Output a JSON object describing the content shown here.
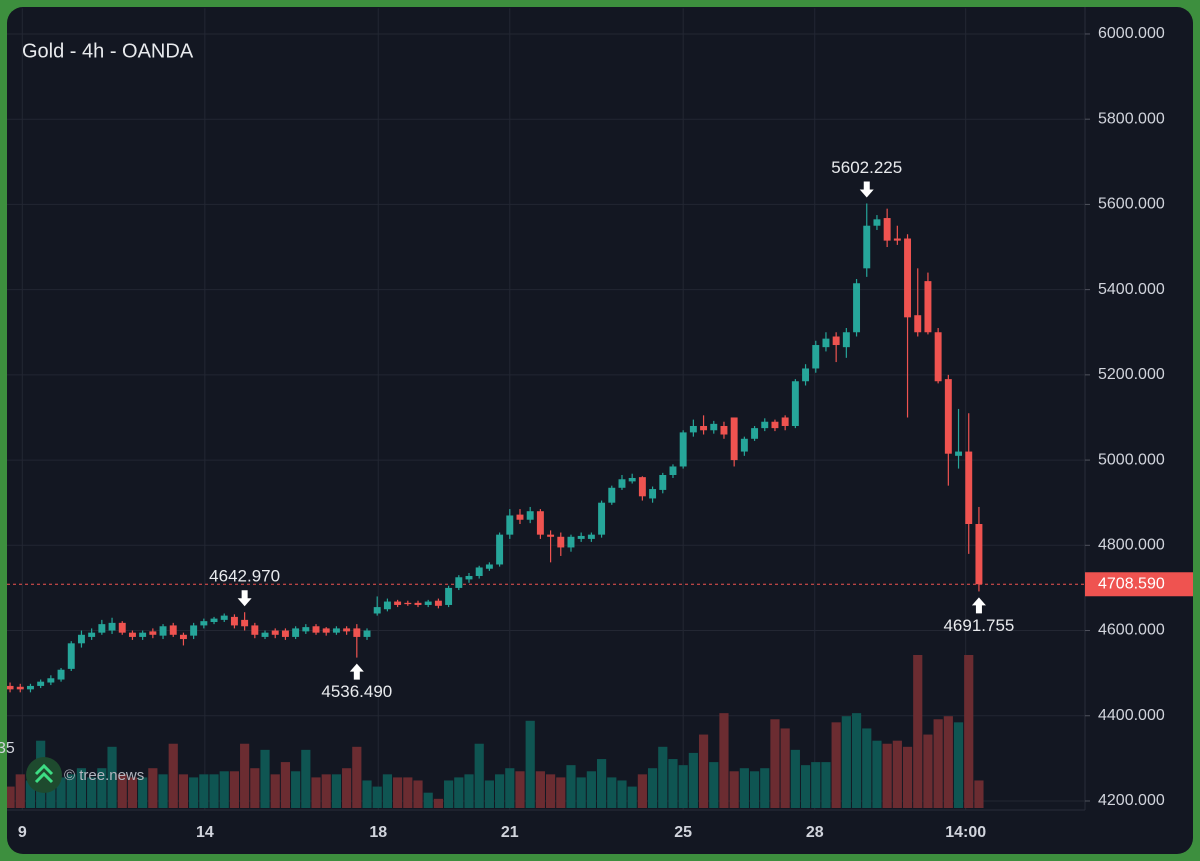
{
  "chart_data": {
    "type": "candlestick",
    "title": "Gold - 4h - OANDA",
    "watermark": "© tree.news",
    "volume_label": "35",
    "up_color": "#26a69a",
    "down_color": "#ef5350",
    "volume_up_color": "#0f5552",
    "volume_down_color": "#6b2c31",
    "grid": true,
    "ylim": [
      4180,
      6060
    ],
    "yticks": [
      {
        "value": 4200,
        "label": "4200.000"
      },
      {
        "value": 4400,
        "label": "4400.000"
      },
      {
        "value": 4600,
        "label": "4600.000"
      },
      {
        "value": 4800,
        "label": "4800.000"
      },
      {
        "value": 5000,
        "label": "5000.000"
      },
      {
        "value": 5200,
        "label": "5200.000"
      },
      {
        "value": 5400,
        "label": "5400.000"
      },
      {
        "value": 5600,
        "label": "5600.000"
      },
      {
        "value": 5800,
        "label": "5800.000"
      },
      {
        "value": 6000,
        "label": "6000.000"
      }
    ],
    "xlim": [
      -0.3,
      105.4
    ],
    "xticks": [
      {
        "value": 1.2,
        "label": "9"
      },
      {
        "value": 19.1,
        "label": "14"
      },
      {
        "value": 36.1,
        "label": "18"
      },
      {
        "value": 49.0,
        "label": "21"
      },
      {
        "value": 66.0,
        "label": "25"
      },
      {
        "value": 78.9,
        "label": "28"
      },
      {
        "value": 93.7,
        "label": "14:00"
      }
    ],
    "last_price": {
      "value": 4708.59,
      "label": "4708.590"
    },
    "annotations": [
      {
        "value": 4642.97,
        "label": "4642.970"
      },
      {
        "value": 4536.49,
        "label": "4536.490"
      },
      {
        "value": 5602.225,
        "label": "5602.225"
      },
      {
        "value": 4691.755,
        "label": "4691.755"
      }
    ],
    "open": [
      4470,
      4468,
      4462,
      4470,
      4478,
      4485,
      4510,
      4570,
      4585,
      4595,
      4600,
      4618,
      4595,
      4585,
      4598,
      4588,
      4612,
      4590,
      4588,
      4612,
      4620,
      4625,
      4632,
      4625,
      4612,
      4585,
      4600,
      4600,
      4585,
      4598,
      4610,
      4605,
      4595,
      4605,
      4605,
      4585,
      4640,
      4650,
      4668,
      4665,
      4665,
      4660,
      4670,
      4660,
      4700,
      4720,
      4728,
      4745,
      4755,
      4825,
      4872,
      4860,
      4880,
      4825,
      4820,
      4795,
      4815,
      4815,
      4825,
      4900,
      4935,
      4950,
      4960,
      4910,
      4930,
      4965,
      4985,
      5065,
      5080,
      5070,
      5080,
      5100,
      5020,
      5050,
      5075,
      5090,
      5100,
      5080,
      5185,
      5215,
      5265,
      5290,
      5265,
      5300,
      5450,
      5550,
      5568,
      5520,
      5520,
      5340,
      5420,
      5300,
      5190,
      5010,
      5020,
      4850
    ],
    "high": [
      4478,
      4475,
      4475,
      4485,
      4495,
      4512,
      4575,
      4600,
      4605,
      4625,
      4630,
      4622,
      4600,
      4600,
      4605,
      4615,
      4618,
      4595,
      4618,
      4628,
      4632,
      4640,
      4638,
      4642.97,
      4618,
      4600,
      4605,
      4605,
      4610,
      4615,
      4615,
      4608,
      4610,
      4610,
      4615,
      4605,
      4680,
      4675,
      4672,
      4670,
      4670,
      4672,
      4675,
      4705,
      4730,
      4735,
      4752,
      4760,
      4830,
      4885,
      4885,
      4890,
      4885,
      4835,
      4830,
      4825,
      4830,
      4830,
      4905,
      4940,
      4965,
      4968,
      4962,
      4938,
      4970,
      4990,
      5070,
      5095,
      5105,
      5092,
      5090,
      5100,
      5055,
      5080,
      5098,
      5095,
      5105,
      5190,
      5225,
      5280,
      5300,
      5300,
      5310,
      5425,
      5602.225,
      5575,
      5590,
      5550,
      5530,
      5450,
      5440,
      5310,
      5200,
      5120,
      5110,
      4890
    ],
    "low": [
      4455,
      4455,
      4455,
      4465,
      4472,
      4480,
      4505,
      4560,
      4578,
      4590,
      4592,
      4590,
      4578,
      4578,
      4582,
      4580,
      4585,
      4565,
      4580,
      4605,
      4615,
      4620,
      4605,
      4600,
      4582,
      4580,
      4582,
      4578,
      4580,
      4592,
      4590,
      4588,
      4590,
      4590,
      4536.49,
      4578,
      4635,
      4645,
      4655,
      4658,
      4655,
      4655,
      4652,
      4655,
      4695,
      4712,
      4722,
      4740,
      4750,
      4815,
      4850,
      4852,
      4815,
      4760,
      4775,
      4785,
      4808,
      4808,
      4818,
      4895,
      4930,
      4945,
      4905,
      4900,
      4922,
      4958,
      4980,
      5055,
      5060,
      5062,
      5050,
      4985,
      5010,
      5045,
      5068,
      5068,
      5070,
      5075,
      5175,
      5205,
      5255,
      5230,
      5240,
      5290,
      5430,
      5540,
      5500,
      5505,
      5100,
      5290,
      5295,
      5180,
      4940,
      4980,
      4780,
      4691.755
    ],
    "close": [
      4462,
      4462,
      4470,
      4480,
      4488,
      4508,
      4570,
      4590,
      4595,
      4615,
      4618,
      4595,
      4585,
      4595,
      4590,
      4610,
      4590,
      4580,
      4612,
      4622,
      4628,
      4635,
      4612,
      4610,
      4590,
      4595,
      4590,
      4585,
      4605,
      4608,
      4595,
      4595,
      4605,
      4598,
      4585,
      4600,
      4655,
      4668,
      4660,
      4662,
      4660,
      4668,
      4658,
      4700,
      4725,
      4728,
      4748,
      4755,
      4825,
      4870,
      4860,
      4880,
      4825,
      4820,
      4795,
      4820,
      4822,
      4825,
      4900,
      4935,
      4955,
      4958,
      4915,
      4932,
      4965,
      4985,
      5065,
      5080,
      5070,
      5085,
      5060,
      5000,
      5050,
      5075,
      5090,
      5075,
      5080,
      5185,
      5215,
      5270,
      5285,
      5270,
      5300,
      5415,
      5550,
      5565,
      5515,
      5515,
      5335,
      5300,
      5300,
      5185,
      5015,
      5020,
      4850,
      4708.59
    ],
    "volume": [
      14,
      22,
      18,
      44,
      16,
      20,
      22,
      26,
      20,
      26,
      40,
      22,
      20,
      20,
      26,
      22,
      42,
      22,
      20,
      22,
      22,
      24,
      24,
      42,
      26,
      38,
      22,
      30,
      24,
      38,
      20,
      22,
      22,
      26,
      40,
      18,
      14,
      22,
      20,
      20,
      18,
      10,
      6,
      18,
      20,
      22,
      42,
      18,
      22,
      26,
      24,
      57,
      24,
      22,
      20,
      28,
      20,
      24,
      32,
      20,
      18,
      14,
      22,
      26,
      40,
      32,
      28,
      36,
      48,
      30,
      62,
      24,
      26,
      24,
      26,
      58,
      52,
      38,
      28,
      30,
      30,
      56,
      60,
      62,
      52,
      44,
      42,
      44,
      40,
      100,
      48,
      58,
      60,
      56,
      100,
      18
    ]
  }
}
